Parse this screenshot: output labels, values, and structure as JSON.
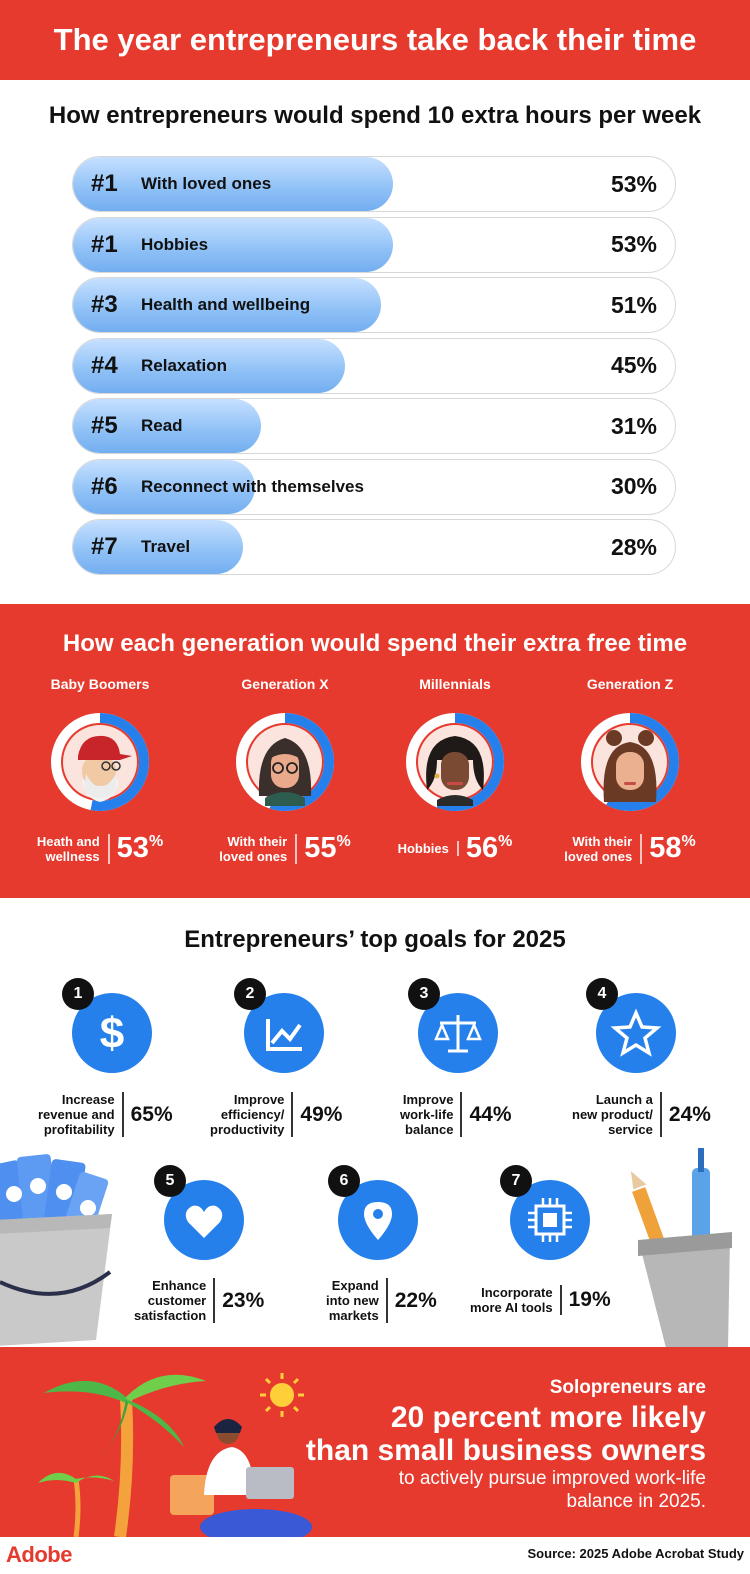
{
  "header": {
    "title": "The year entrepreneurs take back their time"
  },
  "hours": {
    "title": "How entrepreneurs would spend 10 extra hours per week",
    "items": [
      {
        "rank": "#1",
        "label": "With loved ones",
        "pct": "53%",
        "value": 53
      },
      {
        "rank": "#1",
        "label": "Hobbies",
        "pct": "53%",
        "value": 53
      },
      {
        "rank": "#3",
        "label": "Health and wellbeing",
        "pct": "51%",
        "value": 51
      },
      {
        "rank": "#4",
        "label": "Relaxation",
        "pct": "45%",
        "value": 45
      },
      {
        "rank": "#5",
        "label": "Read",
        "pct": "31%",
        "value": 31
      },
      {
        "rank": "#6",
        "label": "Reconnect with themselves",
        "pct": "30%",
        "value": 30
      },
      {
        "rank": "#7",
        "label": "Travel",
        "pct": "28%",
        "value": 28
      }
    ]
  },
  "generations": {
    "title": "How each generation would spend their extra free time",
    "items": [
      {
        "name": "Baby Boomers",
        "desc1": "Heath and",
        "desc2": "wellness",
        "pct": "53",
        "value": 53,
        "icon": "baby-boomer-avatar"
      },
      {
        "name": "Generation X",
        "desc1": "With their",
        "desc2": "loved ones",
        "pct": "55",
        "value": 55,
        "icon": "gen-x-avatar"
      },
      {
        "name": "Millennials",
        "desc1": "Hobbies",
        "desc2": "",
        "pct": "56",
        "value": 56,
        "icon": "millennial-avatar"
      },
      {
        "name": "Generation Z",
        "desc1": "With their",
        "desc2": "loved ones",
        "pct": "58",
        "value": 58,
        "icon": "gen-z-avatar"
      }
    ],
    "pct_symbol": "%"
  },
  "goals": {
    "title": "Entrepreneurs’ top goals for 2025",
    "items": [
      {
        "num": "1",
        "lines": [
          "Increase",
          "revenue and",
          "profitability"
        ],
        "pct": "65%",
        "icon": "dollar-icon"
      },
      {
        "num": "2",
        "lines": [
          "Improve",
          "efficiency/",
          "productivity"
        ],
        "pct": "49%",
        "icon": "chart-icon"
      },
      {
        "num": "3",
        "lines": [
          "Improve",
          "work-life",
          "balance"
        ],
        "pct": "44%",
        "icon": "scale-icon"
      },
      {
        "num": "4",
        "lines": [
          "Launch a",
          "new product/",
          "service"
        ],
        "pct": "24%",
        "icon": "star-icon"
      },
      {
        "num": "5",
        "lines": [
          "Enhance",
          "customer",
          "satisfaction"
        ],
        "pct": "23%",
        "icon": "heart-icon"
      },
      {
        "num": "6",
        "lines": [
          "Expand",
          "into new",
          "markets"
        ],
        "pct": "22%",
        "icon": "location-pin-icon"
      },
      {
        "num": "7",
        "lines": [
          "Incorporate",
          "more AI tools"
        ],
        "pct": "19%",
        "icon": "chip-icon"
      }
    ]
  },
  "solo": {
    "line1": "Solopreneurs are",
    "line2": "20 percent more likely",
    "line3": "than small business owners",
    "line4": "to actively pursue improved work-life",
    "line5": "balance in 2025."
  },
  "footer": {
    "logo": "Adobe",
    "source": "Source: 2025 Adobe Acrobat Study"
  },
  "colors": {
    "red": "#e63a2e",
    "blue": "#2680eb",
    "bar": "#8ec0f6"
  }
}
